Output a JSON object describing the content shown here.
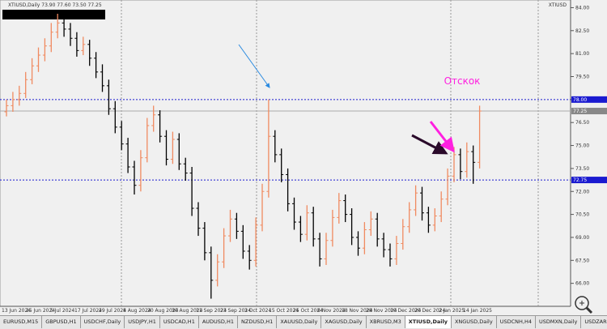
{
  "window": {
    "title": "XTIUSD,Daily  73.90 77.60 73.50 77.25",
    "corner_label": "XTIUSD"
  },
  "chart": {
    "ylim": [
      64.5,
      84.5
    ],
    "yticks": [
      {
        "value": 66,
        "label": "66.00"
      },
      {
        "value": 67.5,
        "label": "67.50"
      },
      {
        "value": 69,
        "label": "69.00"
      },
      {
        "value": 70.5,
        "label": "70.50"
      },
      {
        "value": 72,
        "label": "72.00"
      },
      {
        "value": 73.5,
        "label": "73.50"
      },
      {
        "value": 75,
        "label": "75.00"
      },
      {
        "value": 76.5,
        "label": "76.50"
      },
      {
        "value": 78,
        "label": "78.00"
      },
      {
        "value": 79.5,
        "label": "79.50"
      },
      {
        "value": 81,
        "label": "81.00"
      },
      {
        "value": 82.5,
        "label": "82.50"
      },
      {
        "value": 84,
        "label": "84.00"
      }
    ],
    "levels": [
      {
        "value": 78,
        "label": "78.00",
        "color": "#1a1ad0"
      },
      {
        "value": 72.75,
        "label": "72.75",
        "color": "#1a1ad0"
      }
    ],
    "current": {
      "value": 77.25,
      "label": "77.25"
    },
    "up_color": "#f08a60",
    "down_color": "#000000",
    "x_labels": [
      "13 Jun 2024",
      "25 Jun 2024",
      "5 Jul 2024",
      "17 Jul 2024",
      "29 Jul 2024",
      "8 Aug 2024",
      "20 Aug 2024",
      "30 Aug 2024",
      "11 Sep 2024",
      "23 Sep 2024",
      "3 Oct 2024",
      "15 Oct 2024",
      "25 Oct 2024",
      "6 Nov 2024",
      "18 Nov 2024",
      "28 Nov 2024",
      "10 Dec 2024",
      "20 Dec 2024",
      "2 Jan 2025",
      "14 Jan 2025"
    ],
    "candles": [
      [
        77.2,
        78.0,
        76.9,
        77.6
      ],
      [
        77.6,
        78.5,
        77.2,
        78.0
      ],
      [
        78.0,
        78.9,
        77.6,
        78.4
      ],
      [
        78.4,
        79.8,
        78.1,
        79.3
      ],
      [
        79.3,
        80.7,
        79.0,
        80.2
      ],
      [
        80.2,
        81.4,
        79.8,
        80.9
      ],
      [
        80.9,
        82.0,
        80.5,
        81.5
      ],
      [
        81.5,
        83.0,
        81.1,
        82.4
      ],
      [
        82.4,
        83.6,
        82.0,
        83.0
      ],
      [
        83.0,
        83.4,
        82.1,
        82.6
      ],
      [
        82.6,
        83.0,
        81.5,
        82.0
      ],
      [
        82.0,
        82.4,
        80.8,
        81.2
      ],
      [
        81.2,
        82.1,
        80.9,
        81.6
      ],
      [
        81.6,
        81.9,
        80.2,
        80.7
      ],
      [
        80.7,
        81.1,
        79.4,
        79.8
      ],
      [
        79.8,
        80.3,
        78.5,
        78.9
      ],
      [
        78.9,
        79.3,
        77.0,
        77.4
      ],
      [
        77.4,
        77.9,
        75.8,
        76.2
      ],
      [
        76.2,
        76.6,
        74.7,
        75.1
      ],
      [
        75.1,
        75.5,
        73.2,
        73.6
      ],
      [
        73.6,
        74.0,
        71.8,
        72.4
      ],
      [
        72.4,
        74.7,
        72.0,
        74.2
      ],
      [
        74.2,
        76.8,
        73.9,
        76.3
      ],
      [
        76.3,
        77.6,
        75.9,
        77.0
      ],
      [
        77.0,
        77.3,
        75.2,
        75.6
      ],
      [
        75.6,
        76.0,
        73.7,
        74.1
      ],
      [
        74.1,
        75.9,
        73.8,
        75.4
      ],
      [
        75.4,
        75.8,
        73.4,
        73.8
      ],
      [
        73.8,
        74.2,
        72.7,
        73.2
      ],
      [
        73.2,
        73.6,
        70.4,
        70.9
      ],
      [
        70.9,
        71.3,
        69.1,
        69.6
      ],
      [
        69.6,
        70.0,
        67.5,
        68.0
      ],
      [
        68.0,
        68.4,
        65.0,
        66.2
      ],
      [
        66.2,
        67.9,
        65.8,
        67.4
      ],
      [
        67.4,
        69.6,
        67.0,
        69.1
      ],
      [
        69.1,
        70.8,
        68.7,
        70.2
      ],
      [
        70.2,
        70.6,
        68.9,
        69.4
      ],
      [
        69.4,
        69.8,
        67.6,
        68.1
      ],
      [
        68.1,
        68.5,
        66.9,
        67.5
      ],
      [
        67.5,
        70.3,
        67.1,
        69.8
      ],
      [
        69.8,
        72.5,
        69.4,
        72.0
      ],
      [
        72.0,
        78.0,
        71.6,
        75.6
      ],
      [
        75.6,
        76.0,
        73.9,
        74.4
      ],
      [
        74.4,
        74.8,
        72.6,
        73.1
      ],
      [
        73.1,
        73.5,
        70.7,
        71.2
      ],
      [
        71.2,
        71.6,
        69.5,
        70.0
      ],
      [
        70.0,
        70.4,
        68.7,
        69.2
      ],
      [
        69.2,
        71.1,
        68.8,
        70.6
      ],
      [
        70.6,
        71.0,
        68.4,
        68.9
      ],
      [
        68.9,
        69.3,
        67.1,
        67.6
      ],
      [
        67.6,
        69.3,
        67.2,
        68.8
      ],
      [
        68.8,
        70.8,
        68.4,
        70.3
      ],
      [
        70.3,
        71.9,
        69.9,
        71.4
      ],
      [
        71.4,
        71.8,
        70.0,
        70.5
      ],
      [
        70.5,
        70.9,
        68.5,
        69.0
      ],
      [
        69.0,
        69.4,
        67.8,
        68.3
      ],
      [
        68.3,
        70.0,
        67.9,
        69.5
      ],
      [
        69.5,
        70.7,
        69.1,
        70.2
      ],
      [
        70.2,
        70.6,
        68.4,
        68.9
      ],
      [
        68.9,
        69.3,
        67.7,
        68.2
      ],
      [
        68.2,
        68.6,
        67.1,
        67.6
      ],
      [
        67.6,
        69.1,
        67.2,
        68.6
      ],
      [
        68.6,
        70.2,
        68.2,
        69.7
      ],
      [
        69.7,
        71.3,
        69.3,
        70.8
      ],
      [
        70.8,
        72.4,
        70.4,
        71.9
      ],
      [
        71.9,
        72.3,
        70.1,
        70.6
      ],
      [
        70.6,
        71.0,
        69.3,
        69.8
      ],
      [
        69.8,
        70.9,
        69.4,
        70.4
      ],
      [
        70.4,
        72.0,
        70.0,
        71.5
      ],
      [
        71.5,
        73.5,
        71.1,
        73.0
      ],
      [
        73.0,
        74.9,
        72.6,
        74.4
      ],
      [
        74.4,
        74.8,
        72.8,
        73.3
      ],
      [
        73.3,
        75.2,
        72.9,
        74.6
      ],
      [
        74.6,
        75.0,
        72.5,
        73.9
      ],
      [
        73.9,
        77.6,
        73.5,
        77.25
      ]
    ],
    "annotation": "Отскок"
  },
  "tabs": [
    "EURUSD,M15",
    "GBPUSD,H1",
    "USDCHF,Daily",
    "USDJPY,H1",
    "USDCAD,H1",
    "AUDUSD,H1",
    "NZDUSD,H1",
    "XAUUSD,Daily",
    "XAGUSD,Daily",
    "XBRUSD,M3",
    "XTIUSD,Daily",
    "XNGUSD,Daily",
    "USDCNH,H4",
    "USDMXN,Daily",
    "USDZAR,Daily"
  ],
  "active_tab": 10
}
